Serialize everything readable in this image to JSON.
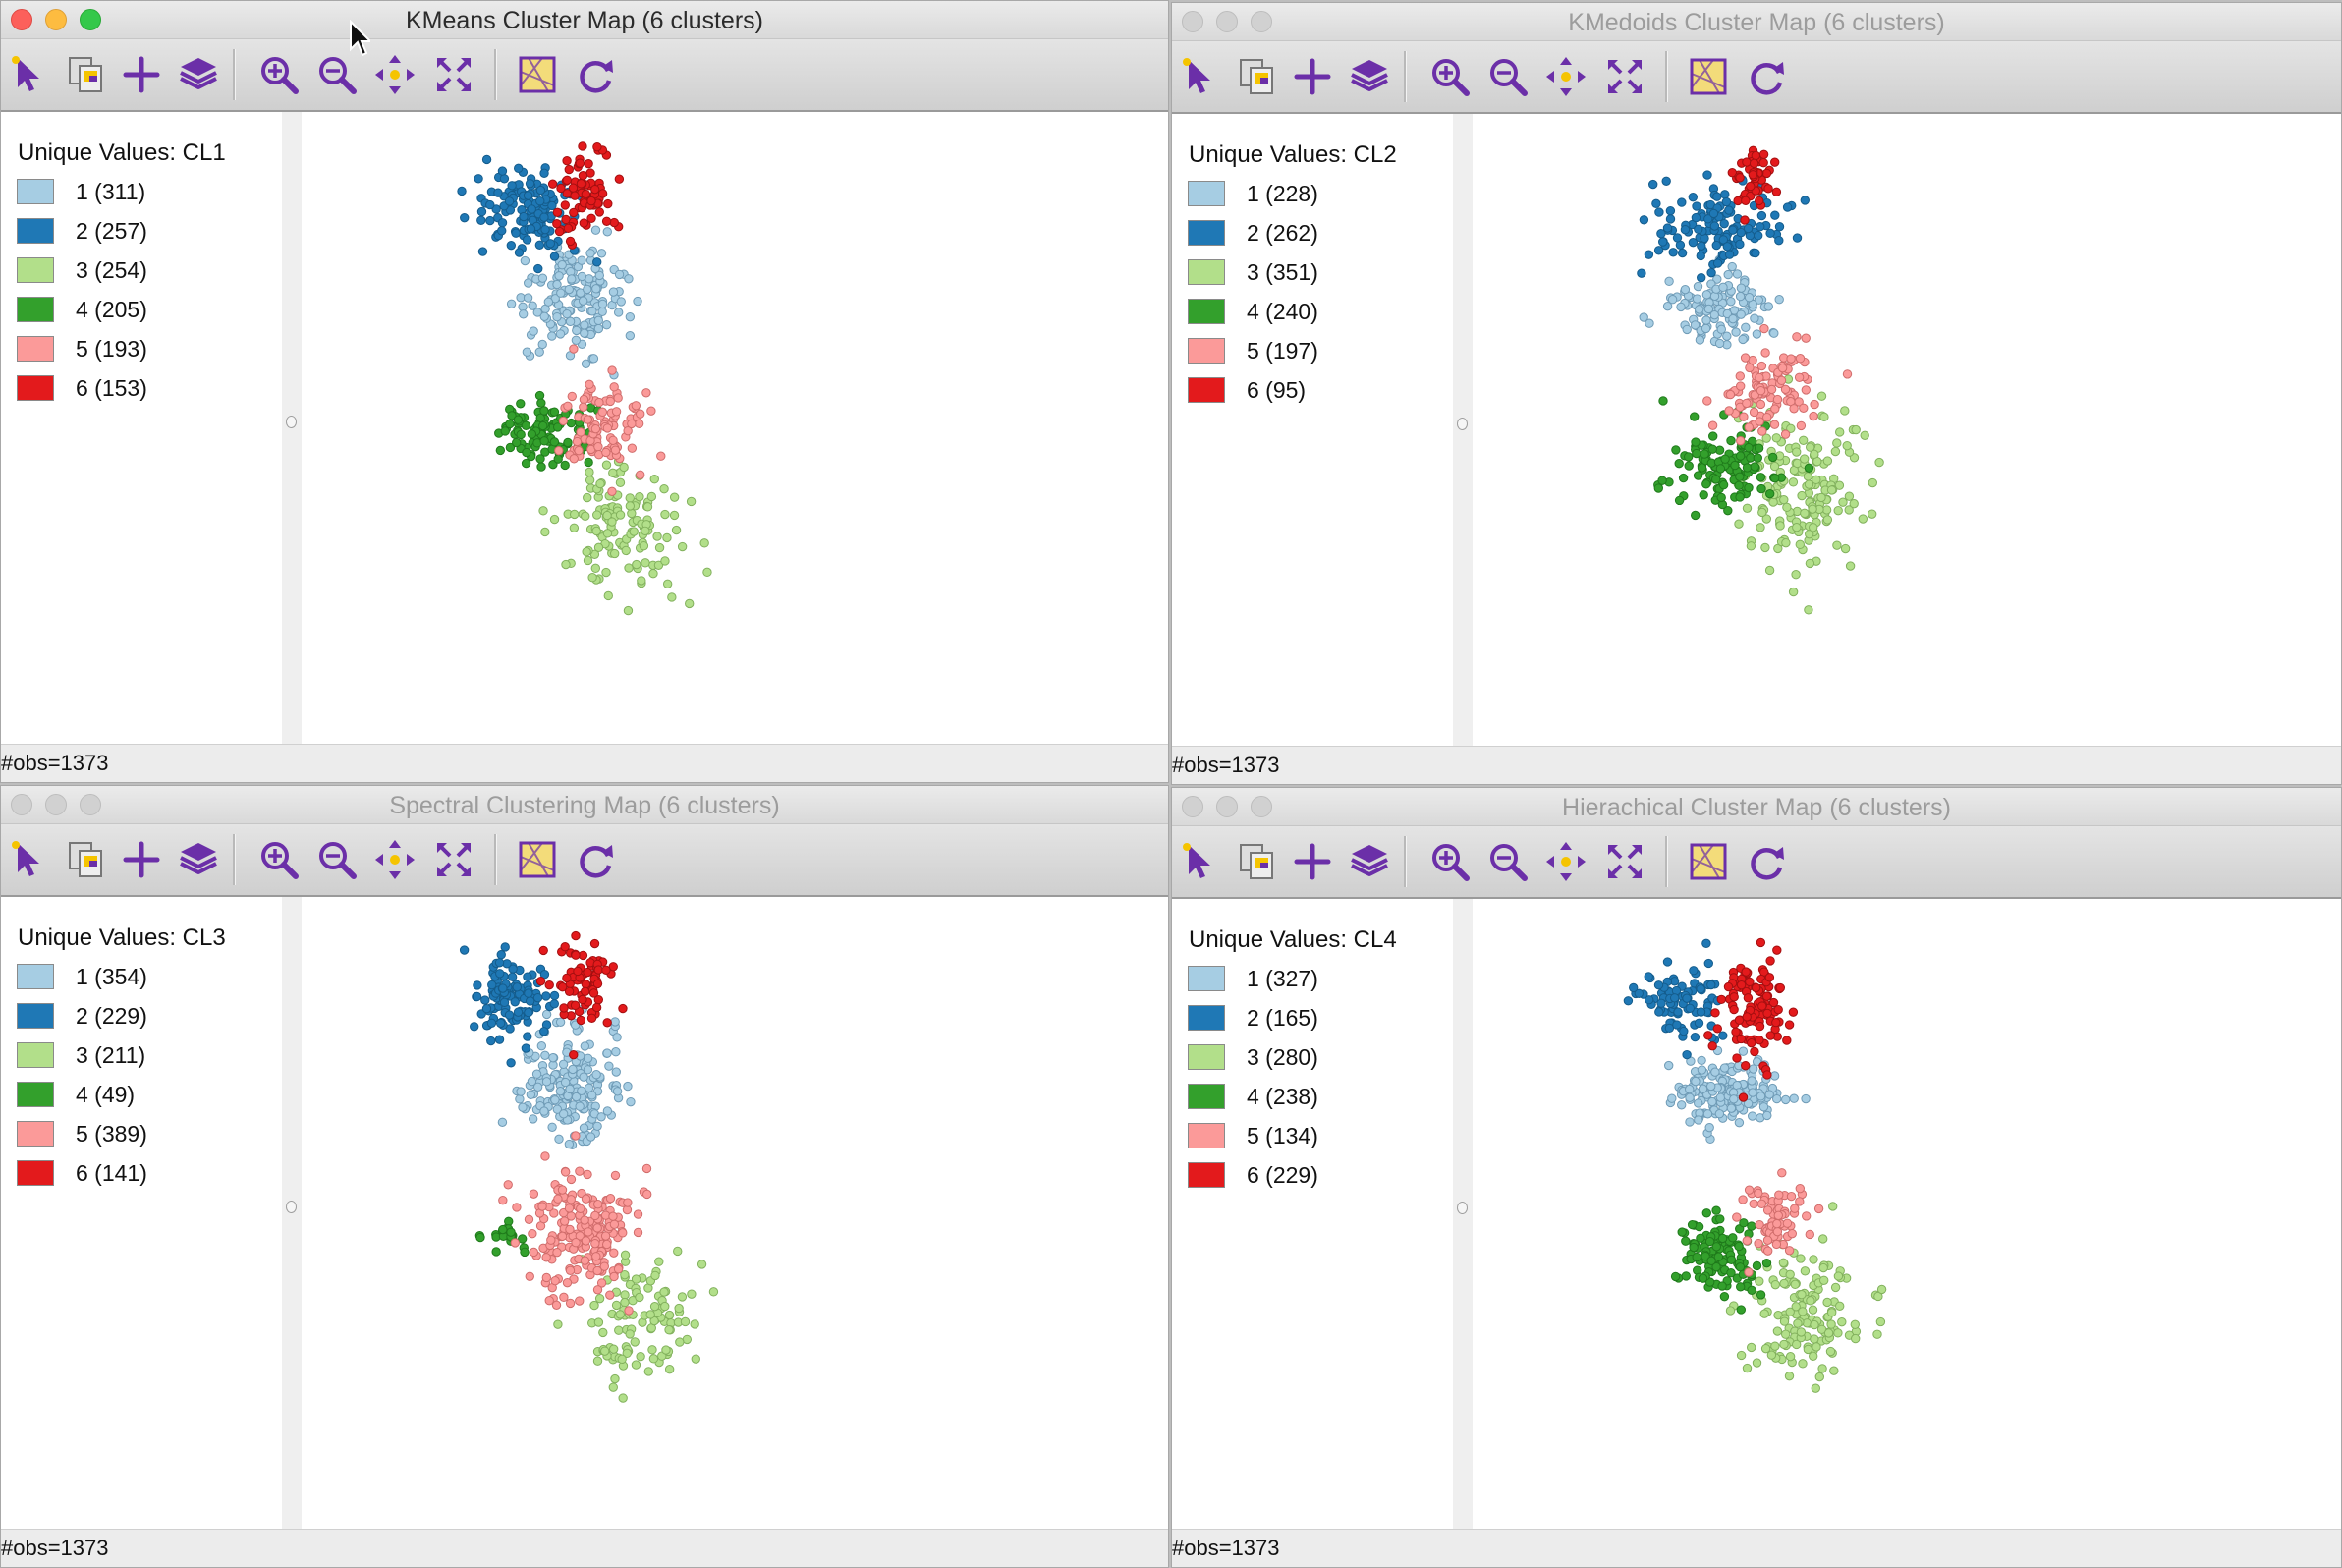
{
  "colors": {
    "c1": "#a6cde3",
    "c2": "#1f78b5",
    "c3": "#b2df8a",
    "c4": "#33a02c",
    "c5": "#fb9a99",
    "c6": "#e31a1c",
    "icon_purple": "#6b2fa8",
    "icon_yellow": "#f5c400"
  },
  "toolbar_icons": [
    "select-pointer-icon",
    "copy-image-icon",
    "add-icon",
    "layers-icon",
    "zoom-in-icon",
    "zoom-out-icon",
    "pan-icon",
    "full-extent-icon",
    "basemap-icon",
    "refresh-icon"
  ],
  "windows": [
    {
      "title": "KMeans Cluster Map (6 clusters)",
      "active": true,
      "legend_title": "Unique Values: CL1",
      "legend": [
        "1 (311)",
        "2 (257)",
        "3 (254)",
        "4 (205)",
        "5 (193)",
        "6 (153)"
      ],
      "status": "#obs=1373"
    },
    {
      "title": "KMedoids Cluster Map (6 clusters)",
      "active": false,
      "legend_title": "Unique Values: CL2",
      "legend": [
        "1 (228)",
        "2 (262)",
        "3 (351)",
        "4 (240)",
        "5 (197)",
        "6 (95)"
      ],
      "status": "#obs=1373"
    },
    {
      "title": "Spectral Clustering Map (6 clusters)",
      "active": false,
      "legend_title": "Unique Values: CL3",
      "legend": [
        "1 (354)",
        "2 (229)",
        "3 (211)",
        "4 (49)",
        "5 (389)",
        "6 (141)"
      ],
      "status": "#obs=1373"
    },
    {
      "title": "Hierachical Cluster Map (6 clusters)",
      "active": false,
      "legend_title": "Unique Values: CL4",
      "legend": [
        "1 (327)",
        "2 (165)",
        "3 (280)",
        "4 (238)",
        "5 (134)",
        "6 (229)"
      ],
      "status": "#obs=1373"
    }
  ]
}
